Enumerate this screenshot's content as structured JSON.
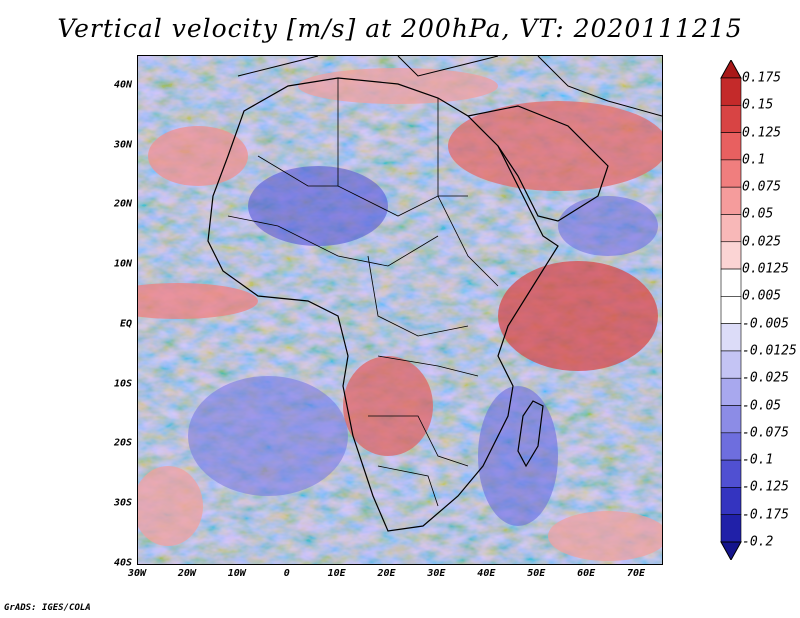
{
  "title": "Vertical velocity [m/s] at 200hPa, VT: 2020111215",
  "footer": "GrADS: IGES/COLA",
  "map": {
    "projection": "latlon",
    "lon_range": [
      -30,
      75
    ],
    "lat_range": [
      -40,
      45
    ],
    "lat_labels": [
      "40N",
      "30N",
      "20N",
      "10N",
      "EQ",
      "10S",
      "20S",
      "30S",
      "40S"
    ],
    "lat_values": [
      40,
      30,
      20,
      10,
      0,
      -10,
      -20,
      -30,
      -40
    ],
    "lon_labels": [
      "30W",
      "20W",
      "10W",
      "0",
      "10E",
      "20E",
      "30E",
      "40E",
      "50E",
      "60E",
      "70E"
    ],
    "lon_values": [
      -30,
      -20,
      -10,
      0,
      10,
      20,
      30,
      40,
      50,
      60,
      70
    ]
  },
  "colorbar": {
    "labels": [
      "0.175",
      "0.15",
      "0.125",
      "0.1",
      "0.075",
      "0.05",
      "0.025",
      "0.0125",
      "0.005",
      "-0.005",
      "-0.0125",
      "-0.025",
      "-0.05",
      "-0.075",
      "-0.1",
      "-0.125",
      "-0.175",
      "-0.2"
    ],
    "colors": [
      "#a81818",
      "#c42a2a",
      "#d84444",
      "#e86060",
      "#f07e7e",
      "#f59c9c",
      "#f8b8b8",
      "#fbd4d4",
      "#ffffff",
      "#ffffff",
      "#dcdcf8",
      "#c4c4f4",
      "#a8a8ee",
      "#8c8ce6",
      "#6e6ede",
      "#5050d2",
      "#3434c0",
      "#2020a8",
      "#14148c"
    ]
  }
}
